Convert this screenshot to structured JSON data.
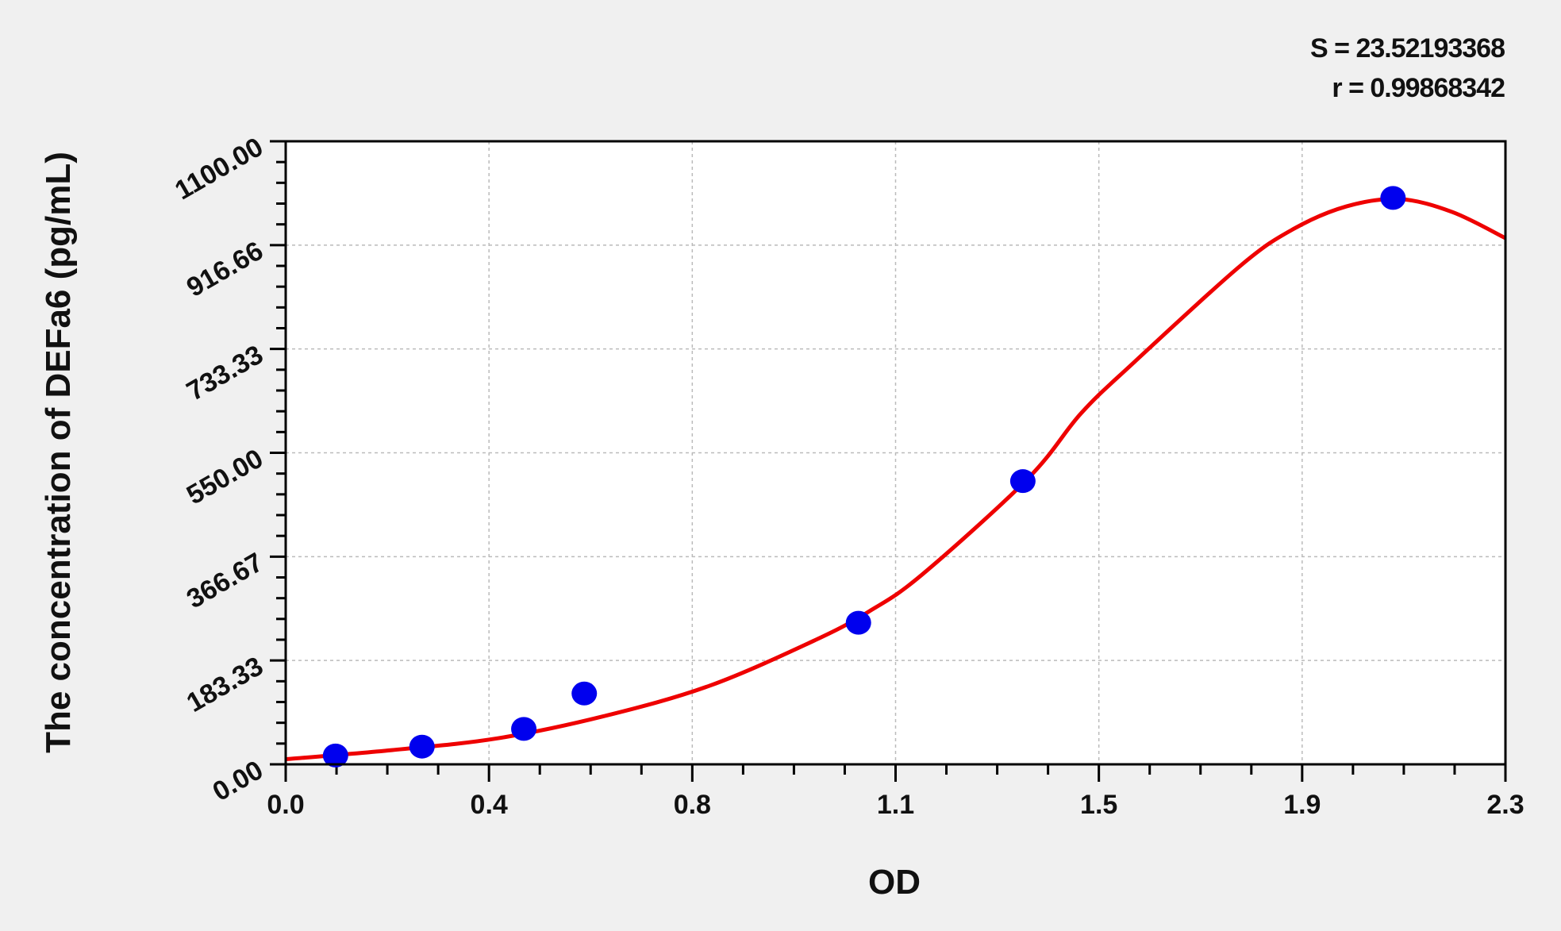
{
  "chart_data": {
    "type": "scatter",
    "xlabel": "OD",
    "ylabel": "The concentration of DEFa6 (pg/mL)",
    "xlim": [
      0,
      2.3
    ],
    "ylim": [
      0,
      1100
    ],
    "x_ticks": [
      "0.0",
      "0.4",
      "0.8",
      "1.1",
      "1.5",
      "1.9",
      "2.3"
    ],
    "y_ticks": [
      "0.00",
      "183.33",
      "366.67",
      "550.00",
      "733.33",
      "916.66",
      "1100.00"
    ],
    "grid": true,
    "annotations": {
      "S": "S = 23.52193368",
      "r": "r = 0.99868342"
    },
    "points": {
      "color": "#0000ee",
      "x": [
        0.094,
        0.257,
        0.449,
        0.563,
        1.08,
        1.39,
        2.088
      ],
      "y": [
        15.63,
        31.25,
        62.5,
        125,
        250,
        500,
        1000
      ]
    },
    "fit_curve": {
      "color": "#ee0000",
      "x": [
        0,
        0.2,
        0.4,
        0.6,
        0.8,
        1.0,
        1.1,
        1.2,
        1.4,
        1.5,
        1.6,
        1.8,
        1.9,
        2.0,
        2.1,
        2.2,
        2.3
      ],
      "y": [
        9,
        25,
        46,
        85,
        139,
        220,
        270,
        335,
        505,
        620,
        710,
        880,
        945,
        985,
        998,
        975,
        929
      ]
    }
  }
}
